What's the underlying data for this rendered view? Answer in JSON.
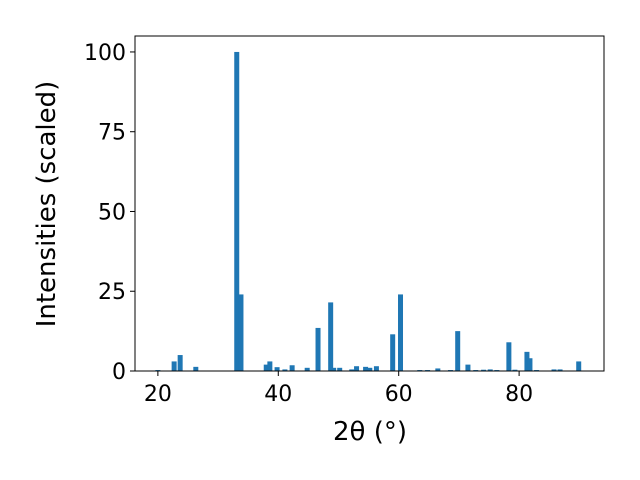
{
  "chart_data": {
    "type": "bar",
    "xlabel": "2θ (°)",
    "ylabel": "Intensities (scaled)",
    "x": [
      20,
      22.7,
      23.7,
      26.3,
      33.1,
      33.8,
      38,
      38.6,
      39.8,
      41.1,
      42.3,
      44.8,
      46.6,
      48.7,
      49.2,
      50.2,
      52.2,
      53,
      54.5,
      55.2,
      56.3,
      59,
      60.3,
      63.5,
      64.8,
      66.5,
      68.6,
      69.8,
      71.5,
      72.8,
      74.1,
      75.2,
      76.3,
      78.3,
      79.3,
      81.3,
      81.8,
      82.9,
      85.8,
      86.8,
      89.9
    ],
    "values": [
      0.3,
      3,
      5,
      1.3,
      100,
      24,
      2,
      3,
      1.2,
      0.5,
      1.8,
      1,
      13.5,
      21.5,
      1,
      1,
      0.5,
      1.5,
      1.3,
      1,
      1.5,
      11.5,
      24,
      0.3,
      0.3,
      0.8,
      0.3,
      12.5,
      2,
      0.3,
      0.4,
      0.5,
      0.3,
      9,
      0.4,
      6,
      4,
      0.3,
      0.5,
      0.5,
      3
    ],
    "color": "#1f77b4",
    "xlim": [
      16.2,
      94.1
    ],
    "xticks": [
      20,
      40,
      60,
      80
    ],
    "ylim": [
      0,
      105
    ],
    "yticks": [
      0,
      25,
      50,
      75,
      100
    ]
  }
}
